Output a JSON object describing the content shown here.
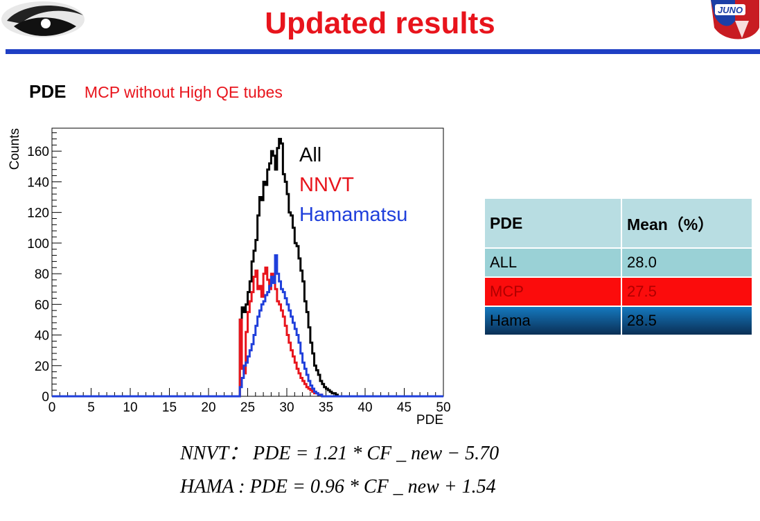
{
  "title": "Updated results",
  "section": {
    "label": "PDE",
    "subtitle": "MCP without High QE tubes"
  },
  "chart_data": {
    "type": "histogram",
    "xlabel": "PDE",
    "ylabel": "Counts",
    "xlim": [
      0,
      50
    ],
    "ylim": [
      0,
      175
    ],
    "x_ticks": [
      0,
      5,
      10,
      15,
      20,
      25,
      30,
      35,
      40,
      45,
      50
    ],
    "y_ticks": [
      0,
      20,
      40,
      60,
      80,
      100,
      120,
      140,
      160
    ],
    "bin_start": 24,
    "bin_width": 0.25,
    "legend_position": "top-right",
    "legend": [
      "All",
      "NNVT",
      "Hamamatsu"
    ],
    "series": [
      {
        "name": "All",
        "color": "#000000",
        "values": [
          50,
          58,
          55,
          60,
          68,
          75,
          88,
          95,
          102,
          118,
          130,
          128,
          140,
          138,
          148,
          152,
          160,
          157,
          148,
          162,
          168,
          165,
          145,
          140,
          132,
          120,
          118,
          110,
          100,
          98,
          90,
          82,
          75,
          62,
          55,
          45,
          35,
          28,
          20,
          17,
          14,
          10,
          8,
          6,
          5,
          4,
          3,
          2,
          2,
          1
        ]
      },
      {
        "name": "NNVT",
        "color": "#e8141c",
        "values": [
          50,
          18,
          15,
          42,
          55,
          62,
          68,
          78,
          82,
          70,
          72,
          65,
          80,
          84,
          76,
          70,
          80,
          78,
          70,
          62,
          60,
          56,
          52,
          46,
          40,
          35,
          30,
          26,
          22,
          18,
          15,
          12,
          10,
          8,
          6,
          5,
          4,
          3,
          2,
          2,
          1,
          1,
          0,
          0,
          0,
          0,
          0,
          0,
          0,
          0
        ]
      },
      {
        "name": "Hamamatsu",
        "color": "#1f3fdb",
        "values": [
          6,
          12,
          20,
          22,
          26,
          30,
          34,
          40,
          46,
          52,
          56,
          60,
          62,
          66,
          68,
          72,
          78,
          74,
          92,
          80,
          75,
          70,
          68,
          64,
          60,
          56,
          52,
          48,
          44,
          40,
          35,
          28,
          22,
          18,
          14,
          10,
          7,
          5,
          3,
          2,
          1,
          1,
          0,
          0,
          0,
          0,
          0,
          0,
          0,
          0
        ]
      }
    ]
  },
  "table": {
    "headers": [
      "PDE",
      "Mean（%）"
    ],
    "rows": [
      {
        "label": "ALL",
        "value": "28.0"
      },
      {
        "label": "MCP",
        "value": "27.5"
      },
      {
        "label": "Hama",
        "value": "28.5"
      }
    ]
  },
  "formulas": [
    "NNVT： PDE = 1.21 * CF _ new − 5.70",
    "HAMA : PDE = 0.96 * CF _ new + 1.54"
  ]
}
